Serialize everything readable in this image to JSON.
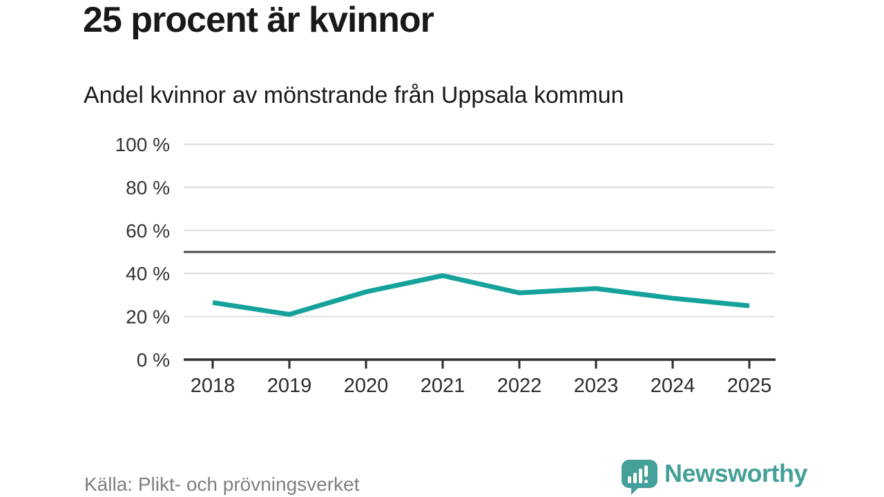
{
  "header": {
    "title": "25 procent är kvinnor",
    "subtitle": "Andel kvinnor av mönstrande från Uppsala kommun"
  },
  "chart_data": {
    "type": "line",
    "title": "25 procent är kvinnor",
    "subtitle": "Andel kvinnor av mönstrande från Uppsala kommun",
    "categories": [
      "2018",
      "2019",
      "2020",
      "2021",
      "2022",
      "2023",
      "2024",
      "2025"
    ],
    "series": [
      {
        "name": "Andel kvinnor av mönstrande",
        "values": [
          26.5,
          21,
          31.5,
          39,
          31,
          33,
          28.5,
          25
        ]
      }
    ],
    "unit": "%",
    "xlabel": "",
    "ylabel": "",
    "ylim": [
      0,
      100
    ],
    "yticks": [
      0,
      20,
      40,
      60,
      80,
      100
    ],
    "ytick_labels": [
      "0 %",
      "20 %",
      "40 %",
      "60 %",
      "80 %",
      "100 %"
    ],
    "reference_line": 50,
    "grid": true,
    "legend": "none",
    "colors": {
      "line": "#14a29a",
      "reference_line": "#4d4d4d",
      "gridline": "#dcdcdc",
      "axis": "#2b2b2b",
      "ytick_label": "#333333",
      "xtick_label": "#2b2b2b"
    }
  },
  "footer": {
    "source": "Källa: Plikt- och prövningsverket",
    "brand": "Newsworthy",
    "brand_color": "#44a099"
  }
}
